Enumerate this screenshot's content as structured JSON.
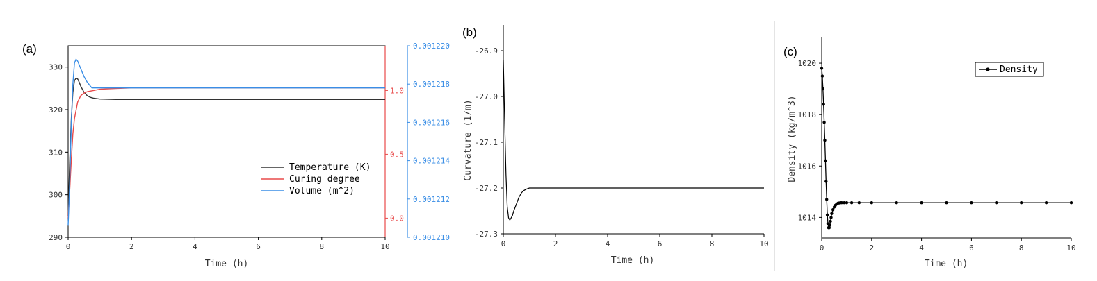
{
  "colors": {
    "temperature": "#333333",
    "curing": "#e84a4a",
    "volume": "#3a8ee6",
    "black": "#000000"
  },
  "chart_data": [
    {
      "panel_label": "(a)",
      "type": "line",
      "xlabel": "Time (h)",
      "xlim": [
        0,
        10
      ],
      "x_ticks": [
        "0",
        "2",
        "4",
        "6",
        "8",
        "10"
      ],
      "y_left": {
        "lim": [
          290,
          335
        ],
        "ticks": [
          "290",
          "300",
          "310",
          "320",
          "330"
        ]
      },
      "y_right1": {
        "lim": [
          -0.15,
          1.35
        ],
        "ticks": [
          "0.0",
          "0.5",
          "1.0"
        ]
      },
      "y_right2": {
        "lim": [
          0.00121,
          0.00122
        ],
        "ticks": [
          "0.001210",
          "0.001212",
          "0.001214",
          "0.001216",
          "0.001218",
          "0.001220"
        ]
      },
      "legend_position": "center-right",
      "series": [
        {
          "name": "Temperature (K)",
          "axis": "left",
          "x": [
            0,
            0.05,
            0.1,
            0.15,
            0.2,
            0.25,
            0.3,
            0.35,
            0.4,
            0.5,
            0.6,
            0.7,
            0.8,
            1.0,
            1.5,
            2,
            4,
            6,
            8,
            10
          ],
          "y": [
            295,
            308,
            318,
            324,
            326.8,
            327.4,
            327.2,
            326.4,
            325.5,
            324.1,
            323.3,
            322.9,
            322.7,
            322.5,
            322.4,
            322.4,
            322.4,
            322.4,
            322.4,
            322.4
          ]
        },
        {
          "name": "Curing degree",
          "axis": "right1",
          "x": [
            0,
            0.05,
            0.1,
            0.15,
            0.2,
            0.3,
            0.4,
            0.5,
            0.6,
            0.8,
            1.0,
            1.5,
            2,
            3,
            4,
            6,
            8,
            10
          ],
          "y": [
            0.0,
            0.22,
            0.46,
            0.66,
            0.78,
            0.91,
            0.96,
            0.98,
            0.99,
            1.0,
            1.01,
            1.015,
            1.02,
            1.02,
            1.02,
            1.02,
            1.02,
            1.02
          ]
        },
        {
          "name": "Volume (m^2)",
          "axis": "right2",
          "x": [
            0,
            0.05,
            0.1,
            0.15,
            0.2,
            0.25,
            0.3,
            0.35,
            0.4,
            0.5,
            0.6,
            0.7,
            0.75,
            0.8,
            1.0,
            2,
            4,
            6,
            8,
            10
          ],
          "y": [
            0.0012106,
            0.0012128,
            0.001216,
            0.001218,
            0.0012191,
            0.0012193,
            0.0012192,
            0.001219,
            0.0012188,
            0.0012184,
            0.0012181,
            0.0012179,
            0.0012178,
            0.0012178,
            0.0012178,
            0.0012178,
            0.0012178,
            0.0012178,
            0.0012178,
            0.0012178
          ]
        }
      ]
    },
    {
      "panel_label": "(b)",
      "type": "line",
      "xlabel": "Time (h)",
      "ylabel": "Curvature (1/m)",
      "xlim": [
        0,
        10
      ],
      "ylim": [
        -27.3,
        -26.85
      ],
      "x_ticks": [
        "0",
        "2",
        "4",
        "6",
        "8",
        "10"
      ],
      "y_ticks": [
        "-26.9",
        "-27.0",
        "-27.1",
        "-27.2",
        "-27.3"
      ],
      "series": [
        {
          "name": "",
          "x": [
            0,
            0.05,
            0.1,
            0.15,
            0.2,
            0.25,
            0.3,
            0.35,
            0.4,
            0.5,
            0.6,
            0.7,
            0.8,
            0.9,
            1.0,
            1.1,
            1.2,
            2,
            4,
            6,
            8,
            10
          ],
          "y": [
            -26.92,
            -27.05,
            -27.17,
            -27.24,
            -27.265,
            -27.27,
            -27.265,
            -27.26,
            -27.25,
            -27.235,
            -27.22,
            -27.21,
            -27.205,
            -27.202,
            -27.2,
            -27.2,
            -27.2,
            -27.2,
            -27.2,
            -27.2,
            -27.2,
            -27.2
          ]
        }
      ]
    },
    {
      "panel_label": "(c)",
      "type": "line",
      "xlabel": "Time (h)",
      "ylabel": "Density (kg/m^3)",
      "xlim": [
        0,
        10
      ],
      "ylim": [
        1013.2,
        1021
      ],
      "x_ticks": [
        "0",
        "2",
        "4",
        "6",
        "8",
        "10"
      ],
      "y_ticks": [
        "1014",
        "1016",
        "1018",
        "1020"
      ],
      "legend_position": "top-right",
      "series": [
        {
          "name": "Density",
          "x": [
            0,
            0.025,
            0.05,
            0.075,
            0.1,
            0.125,
            0.15,
            0.175,
            0.2,
            0.225,
            0.25,
            0.275,
            0.3,
            0.325,
            0.35,
            0.375,
            0.4,
            0.45,
            0.5,
            0.55,
            0.6,
            0.65,
            0.7,
            0.75,
            0.8,
            0.9,
            1.0,
            1.2,
            1.5,
            2,
            3,
            4,
            5,
            6,
            7,
            8,
            9,
            10
          ],
          "y": [
            1019.8,
            1019.5,
            1019.0,
            1018.4,
            1017.7,
            1017.0,
            1016.2,
            1015.4,
            1014.7,
            1014.1,
            1013.75,
            1013.6,
            1013.6,
            1013.7,
            1013.85,
            1014.0,
            1014.15,
            1014.3,
            1014.4,
            1014.47,
            1014.52,
            1014.55,
            1014.56,
            1014.57,
            1014.57,
            1014.57,
            1014.57,
            1014.57,
            1014.57,
            1014.57,
            1014.57,
            1014.57,
            1014.57,
            1014.57,
            1014.57,
            1014.57,
            1014.57,
            1014.57
          ]
        }
      ]
    }
  ]
}
